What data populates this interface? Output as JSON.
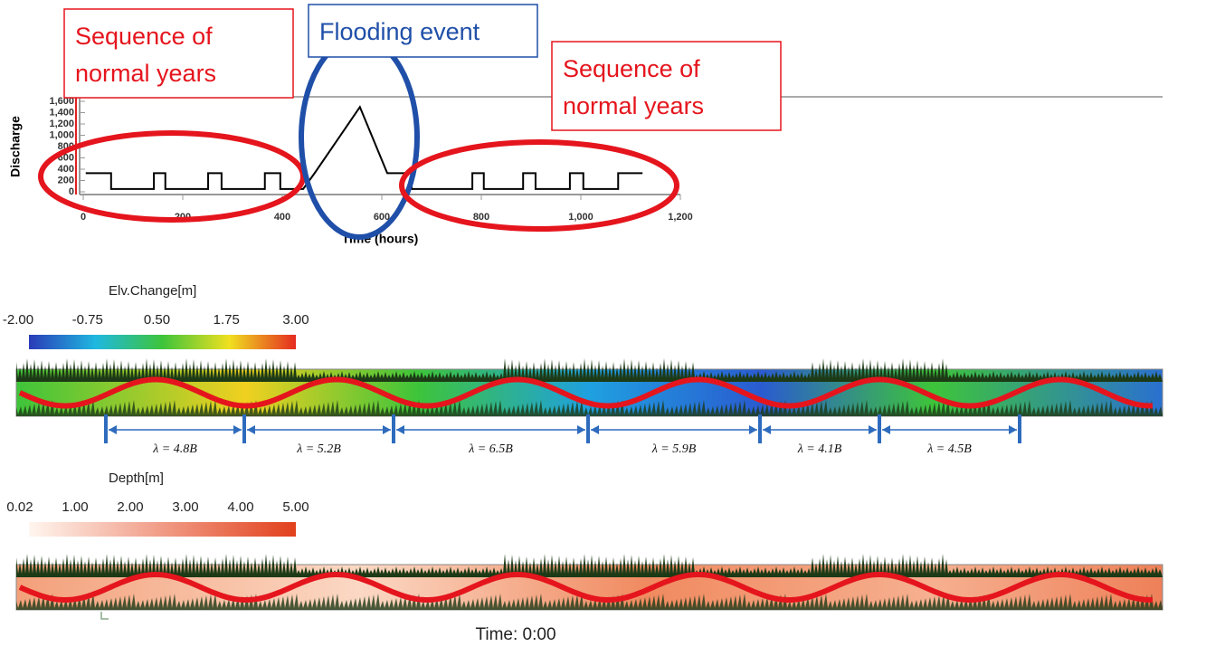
{
  "chart_data": {
    "type": "line",
    "x_label": "Time (hours)",
    "y_label": "Discharge",
    "x": [
      5,
      56,
      56,
      142,
      142,
      165,
      165,
      251,
      251,
      278,
      278,
      365,
      365,
      396,
      396,
      442,
      465,
      556,
      611,
      660,
      660,
      782,
      782,
      805,
      805,
      884,
      884,
      909,
      909,
      978,
      978,
      1005,
      1005,
      1075,
      1075,
      1124
    ],
    "values": [
      330,
      330,
      50,
      50,
      330,
      330,
      50,
      50,
      330,
      330,
      50,
      50,
      330,
      330,
      50,
      50,
      330,
      1500,
      330,
      330,
      50,
      50,
      330,
      330,
      50,
      50,
      330,
      330,
      50,
      50,
      330,
      330,
      50,
      50,
      330,
      330
    ],
    "color": "#000000",
    "xlim": [
      0,
      1200
    ],
    "xticks": [
      0,
      200,
      400,
      600,
      800,
      {
        "value": 1000,
        "label": "1,000"
      },
      {
        "value": 1200,
        "label": "1,200"
      }
    ],
    "ylim": [
      0,
      1600
    ],
    "yticks": [
      0,
      200,
      400,
      600,
      800,
      {
        "value": 1000,
        "label": "1,000"
      },
      {
        "value": 1200,
        "label": "1,200"
      },
      {
        "value": 1400,
        "label": "1,400"
      },
      {
        "value": 1600,
        "label": "1,600"
      }
    ]
  },
  "annotations": {
    "normal_left": [
      "Sequence of",
      "normal years"
    ],
    "flood": [
      "Flooding event"
    ],
    "normal_right": [
      "Sequence of",
      "normal years"
    ]
  },
  "elevation_bar": {
    "title": "Elv.Change[m]",
    "labels": [
      "-2.00",
      "-0.75",
      "0.50",
      "1.75",
      "3.00"
    ]
  },
  "depth_bar": {
    "title": "Depth[m]",
    "labels": [
      "0.02",
      "1.00",
      "2.00",
      "3.00",
      "4.00",
      "5.00"
    ]
  },
  "wavelengths": [
    "λ = 4.8B",
    "λ = 5.2B",
    "λ = 6.5B",
    "λ = 5.9B",
    "λ = 4.1B",
    "λ = 4.5B"
  ],
  "time_label": "Time: 0:00"
}
